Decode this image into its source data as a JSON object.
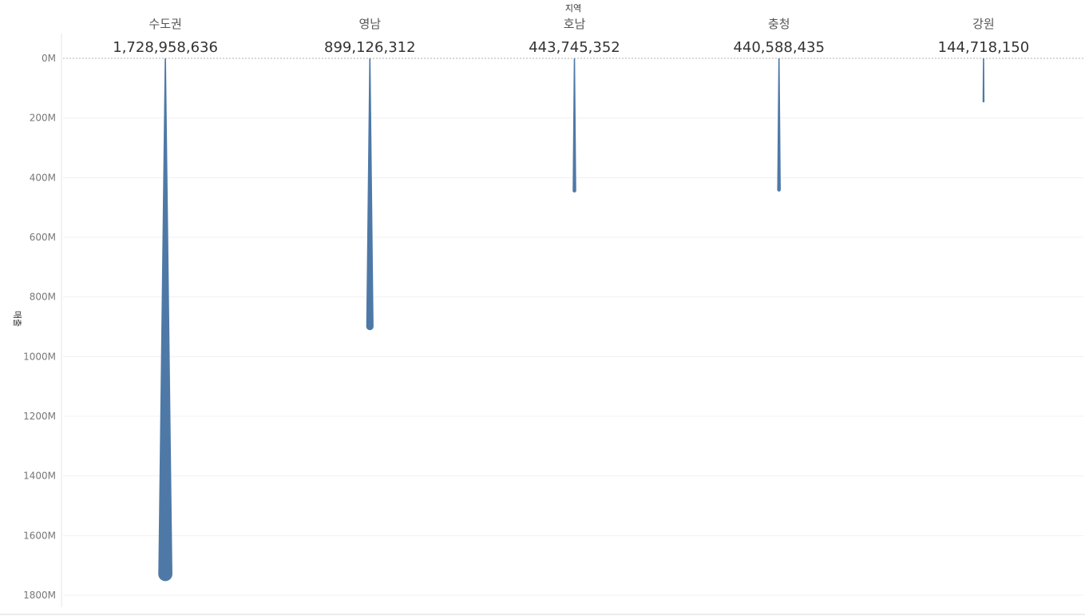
{
  "chart_data": {
    "type": "bar",
    "column_header": "지역",
    "ylabel": "매출",
    "categories": [
      "수도권",
      "영남",
      "호남",
      "충청",
      "강원"
    ],
    "values": [
      1728958636,
      899126312,
      443745352,
      440588435,
      144718150
    ],
    "value_labels": [
      "1,728,958,636",
      "899,126,312",
      "443,745,352",
      "440,588,435",
      "144,718,150"
    ],
    "y_ticks": [
      0,
      200000000,
      400000000,
      600000000,
      800000000,
      1000000000,
      1200000000,
      1400000000,
      1600000000,
      1800000000
    ],
    "y_tick_labels": [
      "0M",
      "200M",
      "400M",
      "600M",
      "800M",
      "1000M",
      "1200M",
      "1400M",
      "1600M",
      "1800M"
    ],
    "ylim": [
      0,
      1800000000
    ],
    "y_axis_reversed": true,
    "grid": true,
    "mark_style": "tapered-teardrop",
    "colors": {
      "mark": "#4e79a7",
      "axis_text": "#777777",
      "header_text": "#555555",
      "value_text": "#333333",
      "grid": "#f0f0f0",
      "zero_line": "#b0b0b0"
    }
  }
}
